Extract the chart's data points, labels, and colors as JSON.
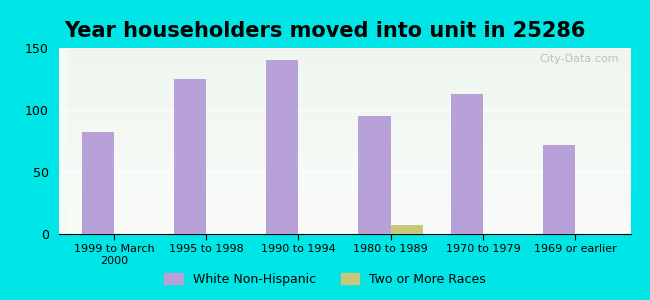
{
  "title": "Year householders moved into unit in 25286",
  "categories": [
    "1999 to March\n2000",
    "1995 to 1998",
    "1990 to 1994",
    "1980 to 1989",
    "1970 to 1979",
    "1969 or earlier"
  ],
  "white_non_hispanic": [
    82,
    125,
    140,
    95,
    113,
    72
  ],
  "two_or_more_races": [
    0,
    0,
    0,
    7,
    0,
    0
  ],
  "bar_color_white": "#b8a0d8",
  "bar_color_two": "#c8c87a",
  "background_outer": "#00e5e5",
  "background_inner_top": "#e8f0e8",
  "background_inner_bottom": "#f5faf5",
  "title_fontsize": 15,
  "ylim": [
    0,
    150
  ],
  "yticks": [
    0,
    50,
    100,
    150
  ],
  "bar_width": 0.35,
  "legend_white": "White Non-Hispanic",
  "legend_two": "Two or More Races",
  "watermark": "City-Data.com"
}
